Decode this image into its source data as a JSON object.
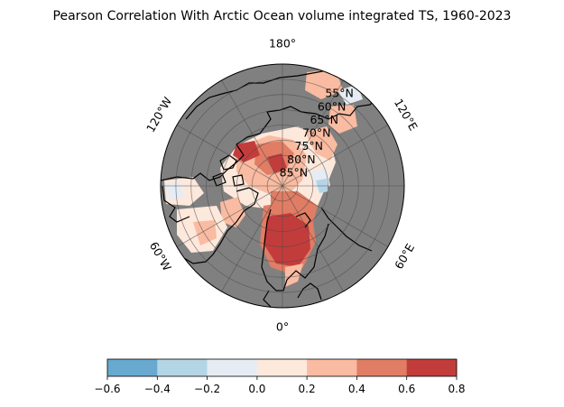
{
  "title": "Pearson Correlation With Arctic Ocean volume integrated TS, 1960-2023",
  "map": {
    "projection": "north-polar-stereographic",
    "land_color": "#808080",
    "coast_color": "#000000",
    "grid_color": "#4a4a4a",
    "longitude_labels": [
      "180°",
      "120°E",
      "60°E",
      "0°",
      "60°W",
      "120°W"
    ],
    "longitude_values": [
      180,
      120,
      60,
      0,
      -60,
      -120
    ],
    "latitude_labels": [
      "55°N",
      "60°N",
      "65°N",
      "70°N",
      "75°N",
      "80°N",
      "85°N"
    ],
    "latitude_values": [
      55,
      60,
      65,
      70,
      75,
      80,
      85
    ]
  },
  "colorbar": {
    "min": -0.6,
    "max": 0.8,
    "tick_labels": [
      "−0.6",
      "−0.4",
      "−0.2",
      "0.0",
      "0.2",
      "0.4",
      "0.6",
      "0.8"
    ],
    "bins": [
      {
        "from": -0.6,
        "to": -0.4,
        "color": "#67a9cf"
      },
      {
        "from": -0.4,
        "to": -0.2,
        "color": "#b4d5e6"
      },
      {
        "from": -0.2,
        "to": 0.0,
        "color": "#e6ecf3"
      },
      {
        "from": 0.0,
        "to": 0.2,
        "color": "#fde8dc"
      },
      {
        "from": 0.2,
        "to": 0.4,
        "color": "#f9bba1"
      },
      {
        "from": 0.4,
        "to": 0.6,
        "color": "#e07d64"
      },
      {
        "from": 0.6,
        "to": 0.8,
        "color": "#c33c3c"
      }
    ]
  }
}
